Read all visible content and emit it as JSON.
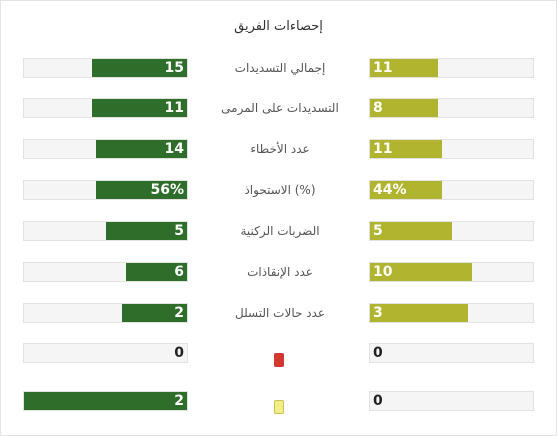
{
  "title": "إحصاءات الفريق",
  "colors": {
    "home": "#2e6e2a",
    "away": "#b1b42f",
    "red_card": "#d2382f",
    "yellow_card": "#f2ed86"
  },
  "stats": [
    {
      "label": "إجمالي التسديدات",
      "home": "15",
      "away": "11",
      "home_fraction": 0.58,
      "away_fraction": 0.42
    },
    {
      "label": "التسديدات على المرمى",
      "home": "11",
      "away": "8",
      "home_fraction": 0.58,
      "away_fraction": 0.42
    },
    {
      "label": "عدد الأخطاء",
      "home": "14",
      "away": "11",
      "home_fraction": 0.56,
      "away_fraction": 0.44
    },
    {
      "label": "الاستحواذ (%)",
      "home": "56%",
      "away": "44%",
      "home_fraction": 0.56,
      "away_fraction": 0.44
    },
    {
      "label": "الضربات الركنية",
      "home": "5",
      "away": "5",
      "home_fraction": 0.5,
      "away_fraction": 0.5
    },
    {
      "label": "عدد الإنقاذات",
      "home": "6",
      "away": "10",
      "home_fraction": 0.375,
      "away_fraction": 0.625
    },
    {
      "label": "عدد حالات التسلل",
      "home": "2",
      "away": "3",
      "home_fraction": 0.4,
      "away_fraction": 0.6
    },
    {
      "icon": "red-card-icon",
      "home": "0",
      "away": "0",
      "home_fraction": 0,
      "away_fraction": 0
    },
    {
      "icon": "yellow-card-icon",
      "home": "2",
      "away": "0",
      "home_fraction": 1.0,
      "away_fraction": 0
    }
  ]
}
